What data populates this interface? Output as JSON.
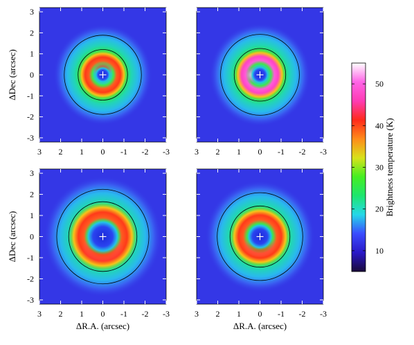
{
  "chart_data": [
    {
      "type": "heatmap",
      "panel": "top-left",
      "xlabel": "",
      "ylabel": "ΔDec (arcsec)",
      "xlim": [
        3,
        -3
      ],
      "ylim": [
        -3.2,
        3.2
      ],
      "ring": {
        "peak_radius": 0.45,
        "peak_temp": 48,
        "center_temp": 12,
        "background_temp": 12,
        "bright_side": "north"
      }
    },
    {
      "type": "heatmap",
      "panel": "top-right",
      "xlabel": "",
      "ylabel": "",
      "xlim": [
        3,
        -3
      ],
      "ylim": [
        -3.2,
        3.2
      ],
      "ring": {
        "peak_radius": 0.5,
        "peak_temp": 55,
        "center_temp": 12,
        "background_temp": 12,
        "bright_side": "east"
      }
    },
    {
      "type": "heatmap",
      "panel": "bottom-left",
      "xlabel": "ΔR.A. (arcsec)",
      "ylabel": "ΔDec (arcsec)",
      "xlim": [
        3,
        -3
      ],
      "ylim": [
        -3.2,
        3.2
      ],
      "ring": {
        "peak_radius": 0.9,
        "peak_temp": 40,
        "center_temp": 10,
        "background_temp": 12,
        "bright_side": "south"
      }
    },
    {
      "type": "heatmap",
      "panel": "bottom-right",
      "xlabel": "ΔR.A. (arcsec)",
      "ylabel": "",
      "xlim": [
        3,
        -3
      ],
      "ylim": [
        -3.2,
        3.2
      ],
      "ring": {
        "peak_radius": 0.7,
        "peak_temp": 42,
        "center_temp": 10,
        "background_temp": 12,
        "bright_side": "south"
      }
    }
  ],
  "axes": {
    "x_ticks": [
      "3",
      "2",
      "1",
      "0",
      "-1",
      "-2",
      "-3"
    ],
    "x_tick_values": [
      3,
      2,
      1,
      0,
      -1,
      -2,
      -3
    ],
    "y_ticks": [
      "3",
      "2",
      "1",
      "0",
      "-1",
      "-2",
      "-3"
    ],
    "y_tick_values": [
      3,
      2,
      1,
      0,
      -1,
      -2,
      -3
    ]
  },
  "colorbar": {
    "label": "Brightness temperature (K)",
    "range": [
      5,
      55
    ],
    "tick_values": [
      10,
      20,
      30,
      40,
      50
    ],
    "tick_labels": [
      "10",
      "20",
      "30",
      "40",
      "50"
    ],
    "stops": [
      "#1a0a3a",
      "#2a18c8",
      "#3a4cff",
      "#25d8e8",
      "#1ee66e",
      "#46ee22",
      "#d8e21a",
      "#ff8c1a",
      "#ff2a1a",
      "#ff3cb4",
      "#ff64e6",
      "#ffffff"
    ]
  }
}
